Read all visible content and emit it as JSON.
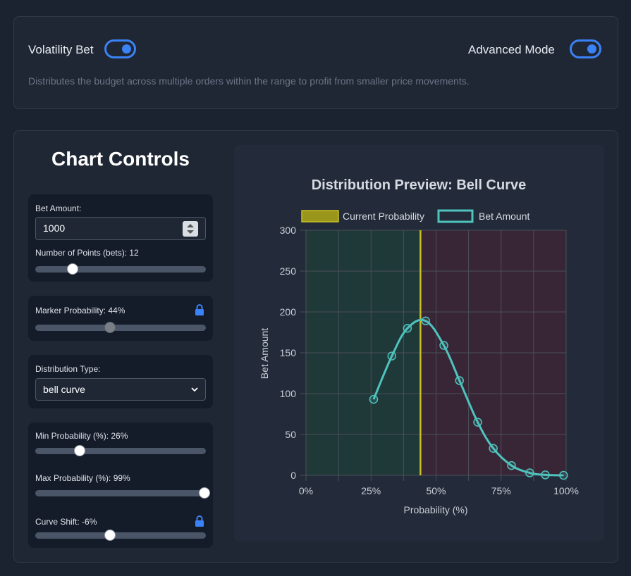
{
  "toggles": {
    "volatility_label": "Volatility Bet",
    "advanced_label": "Advanced Mode",
    "description": "Distributes the budget across multiple orders within the range to profit from smaller price movements."
  },
  "controls": {
    "title": "Chart Controls",
    "bet_amount_label": "Bet Amount:",
    "bet_amount_value": "1000",
    "num_points_label": "Number of Points (bets): 12",
    "num_points_fraction": 0.22,
    "marker_label": "Marker Probability: 44%",
    "marker_fraction": 0.44,
    "dist_type_label": "Distribution Type:",
    "dist_type_value": "bell curve",
    "min_prob_label": "Min Probability (%): 26%",
    "min_prob_fraction": 0.26,
    "max_prob_label": "Max Probability (%): 99%",
    "max_prob_fraction": 0.99,
    "curve_shift_label": "Curve Shift: -6%",
    "curve_shift_fraction": 0.44
  },
  "colors": {
    "accent": "#3b82f6",
    "line": "#4fc3bd",
    "marker": "#c8c022"
  },
  "chart_data": {
    "type": "line",
    "title": "Distribution Preview: Bell Curve",
    "xlabel": "Probability (%)",
    "ylabel": "Bet Amount",
    "xlim": [
      0,
      100
    ],
    "ylim": [
      0,
      300
    ],
    "x_ticks": [
      "0%",
      "25%",
      "50%",
      "75%",
      "100%"
    ],
    "y_ticks": [
      "0",
      "50",
      "100",
      "150",
      "200",
      "250",
      "300"
    ],
    "legend": [
      "Current Probability",
      "Bet Amount"
    ],
    "marker_x": 44,
    "series": [
      {
        "name": "Bet Amount",
        "x": [
          26,
          33,
          39,
          46,
          53,
          59,
          66,
          72,
          79,
          86,
          92,
          99
        ],
        "y": [
          93,
          146,
          180,
          189,
          159,
          116,
          65,
          33,
          12,
          3,
          0.5,
          0
        ]
      }
    ]
  }
}
